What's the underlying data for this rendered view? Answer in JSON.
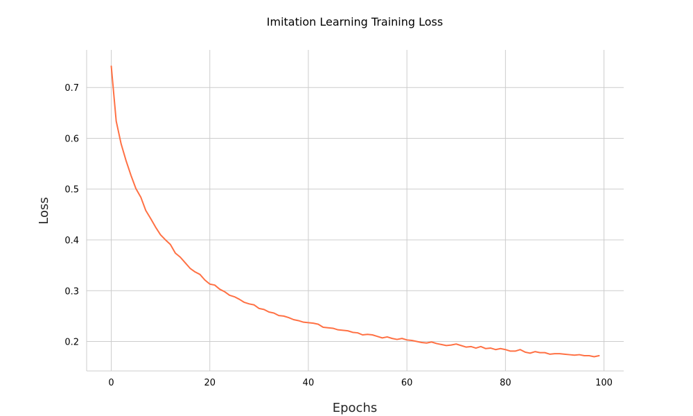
{
  "chart_data": {
    "type": "line",
    "title": "Imitation Learning Training Loss",
    "xlabel": "Epochs",
    "ylabel": "Loss",
    "xlim": [
      -5,
      104
    ],
    "ylim": [
      0.142,
      0.774
    ],
    "xticks": [
      0,
      20,
      40,
      60,
      80,
      100
    ],
    "yticks": [
      0.2,
      0.3,
      0.4,
      0.5,
      0.6,
      0.7
    ],
    "xtick_labels": [
      "0",
      "20",
      "40",
      "60",
      "80",
      "100"
    ],
    "ytick_labels": [
      "0.2",
      "0.3",
      "0.4",
      "0.5",
      "0.6",
      "0.7"
    ],
    "grid": true,
    "legend": "none",
    "line_color": "#ff7043",
    "grid_color": "#cccccc",
    "series": [
      {
        "x": [
          0,
          1,
          2,
          3,
          4,
          5,
          6,
          7,
          8,
          9,
          10,
          11,
          12,
          13,
          14,
          15,
          16,
          17,
          18,
          19,
          20,
          21,
          22,
          23,
          24,
          25,
          26,
          27,
          28,
          29,
          30,
          31,
          32,
          33,
          34,
          35,
          36,
          37,
          38,
          39,
          40,
          41,
          42,
          43,
          44,
          45,
          46,
          47,
          48,
          49,
          50,
          51,
          52,
          53,
          54,
          55,
          56,
          57,
          58,
          59,
          60,
          61,
          62,
          63,
          64,
          65,
          66,
          67,
          68,
          69,
          70,
          71,
          72,
          73,
          74,
          75,
          76,
          77,
          78,
          79,
          80,
          81,
          82,
          83,
          84,
          85,
          86,
          87,
          88,
          89,
          90,
          91,
          92,
          93,
          94,
          95,
          96,
          97,
          98,
          99
        ],
        "values": [
          0.742,
          0.634,
          0.589,
          0.556,
          0.527,
          0.501,
          0.484,
          0.458,
          0.442,
          0.425,
          0.41,
          0.4,
          0.391,
          0.374,
          0.366,
          0.355,
          0.344,
          0.337,
          0.332,
          0.321,
          0.313,
          0.311,
          0.303,
          0.298,
          0.291,
          0.288,
          0.283,
          0.277,
          0.274,
          0.272,
          0.265,
          0.263,
          0.258,
          0.256,
          0.251,
          0.25,
          0.247,
          0.243,
          0.241,
          0.238,
          0.237,
          0.236,
          0.234,
          0.228,
          0.227,
          0.226,
          0.223,
          0.222,
          0.221,
          0.218,
          0.217,
          0.213,
          0.214,
          0.213,
          0.21,
          0.207,
          0.209,
          0.206,
          0.204,
          0.206,
          0.203,
          0.202,
          0.2,
          0.198,
          0.197,
          0.199,
          0.196,
          0.194,
          0.192,
          0.193,
          0.195,
          0.192,
          0.189,
          0.19,
          0.187,
          0.19,
          0.186,
          0.187,
          0.184,
          0.186,
          0.184,
          0.181,
          0.181,
          0.184,
          0.179,
          0.177,
          0.18,
          0.178,
          0.178,
          0.175,
          0.176,
          0.176,
          0.175,
          0.174,
          0.173,
          0.174,
          0.172,
          0.172,
          0.17,
          0.172
        ]
      }
    ]
  }
}
